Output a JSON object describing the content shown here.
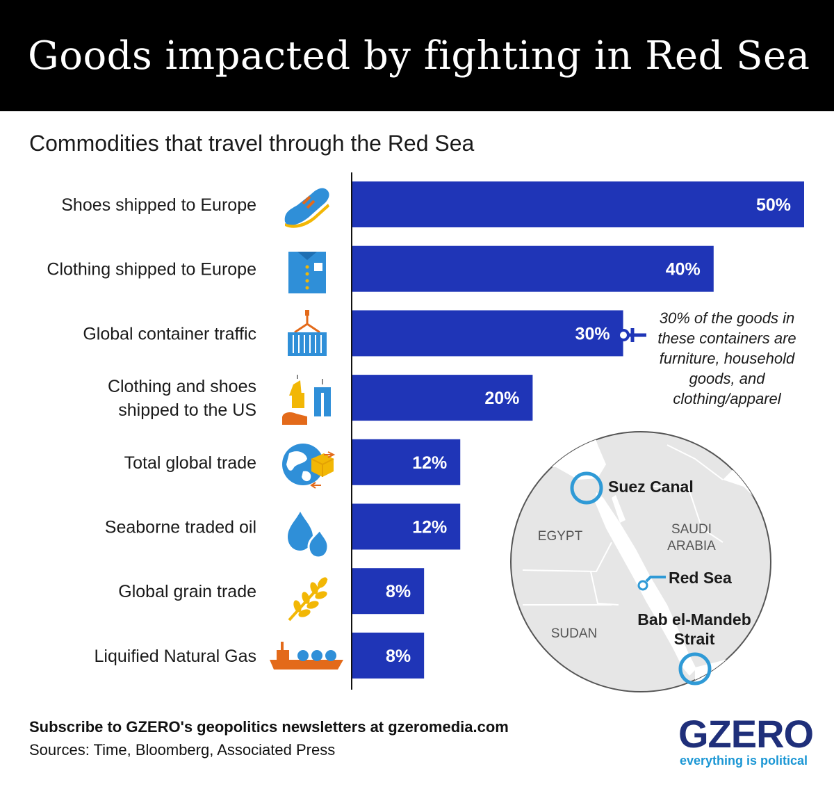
{
  "title": "Goods impacted by fighting in Red Sea",
  "subtitle": "Commodities that travel through the Red Sea",
  "chart_data": {
    "type": "bar",
    "orientation": "horizontal",
    "categories": [
      "Shoes shipped to Europe",
      "Clothing shipped to Europe",
      "Global container traffic",
      "Clothing and shoes shipped to the US",
      "Total global trade",
      "Seaborne traded oil",
      "Global grain trade",
      "Liquified Natural Gas"
    ],
    "category_lines": [
      [
        "Shoes shipped to Europe"
      ],
      [
        "Clothing shipped to Europe"
      ],
      [
        "Global container traffic"
      ],
      [
        "Clothing and shoes",
        "shipped to the US"
      ],
      [
        "Total global trade"
      ],
      [
        "Seaborne traded oil"
      ],
      [
        "Global grain trade"
      ],
      [
        "Liquified Natural Gas"
      ]
    ],
    "values": [
      50,
      40,
      30,
      20,
      12,
      12,
      8,
      8
    ],
    "value_labels": [
      "50%",
      "40%",
      "30%",
      "20%",
      "12%",
      "12%",
      "8%",
      "8%"
    ],
    "icons": [
      "shoe-icon",
      "shirt-icon",
      "container-crane-icon",
      "clothes-hanger-icon",
      "globe-trade-icon",
      "oil-drops-icon",
      "wheat-icon",
      "lng-tanker-icon"
    ],
    "xlim": [
      0,
      50
    ],
    "grid": false,
    "bar_color": "#1f35b7",
    "annotation": {
      "category": "Global container traffic",
      "text": "30% of the goods in these containers are furniture, household goods, and clothing/apparel"
    }
  },
  "map": {
    "labels": {
      "egypt": "EGYPT",
      "saudi": [
        "SAUDI",
        "ARABIA"
      ],
      "sudan": "SUDAN",
      "suez": "Suez Canal",
      "red_sea": "Red Sea",
      "bab": [
        "Bab el-Mandeb",
        "Strait"
      ]
    },
    "marker_color": "#2f9ad6",
    "land_color": "#e6e6e6"
  },
  "footer": {
    "subscribe": "Subscribe to GZERO's geopolitics newsletters at gzeromedia.com",
    "sources": "Sources: Time, Bloomberg, Associated Press"
  },
  "logo": {
    "word": "GZERO",
    "tagline": "everything is political"
  },
  "colors": {
    "bar": "#1f35b7",
    "icon_blue": "#2f8fd8",
    "icon_orange": "#e36a1a",
    "header_bg": "#000000"
  }
}
